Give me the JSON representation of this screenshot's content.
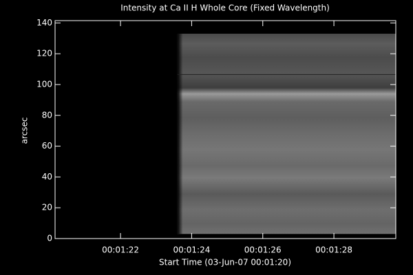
{
  "chart_data": {
    "type": "image",
    "title": "Intensity at Ca II H Whole Core (Fixed Wavelength)",
    "xlabel": "Start Time (03-Jun-07 00:01:20)",
    "ylabel": "arcsec",
    "xlim": [
      0.16,
      9.74
    ],
    "ylim": [
      0,
      141.5
    ],
    "xticks": [
      {
        "value": 2,
        "label": "00:01:22"
      },
      {
        "value": 4,
        "label": "00:01:24"
      },
      {
        "value": 6,
        "label": "00:01:26"
      },
      {
        "value": 8,
        "label": "00:01:28"
      }
    ],
    "yticks": [
      0,
      20,
      40,
      60,
      80,
      100,
      120,
      140
    ],
    "image_x": [
      3.6,
      9.74
    ],
    "image_y": [
      3,
      133
    ],
    "hline": 106.5
  }
}
